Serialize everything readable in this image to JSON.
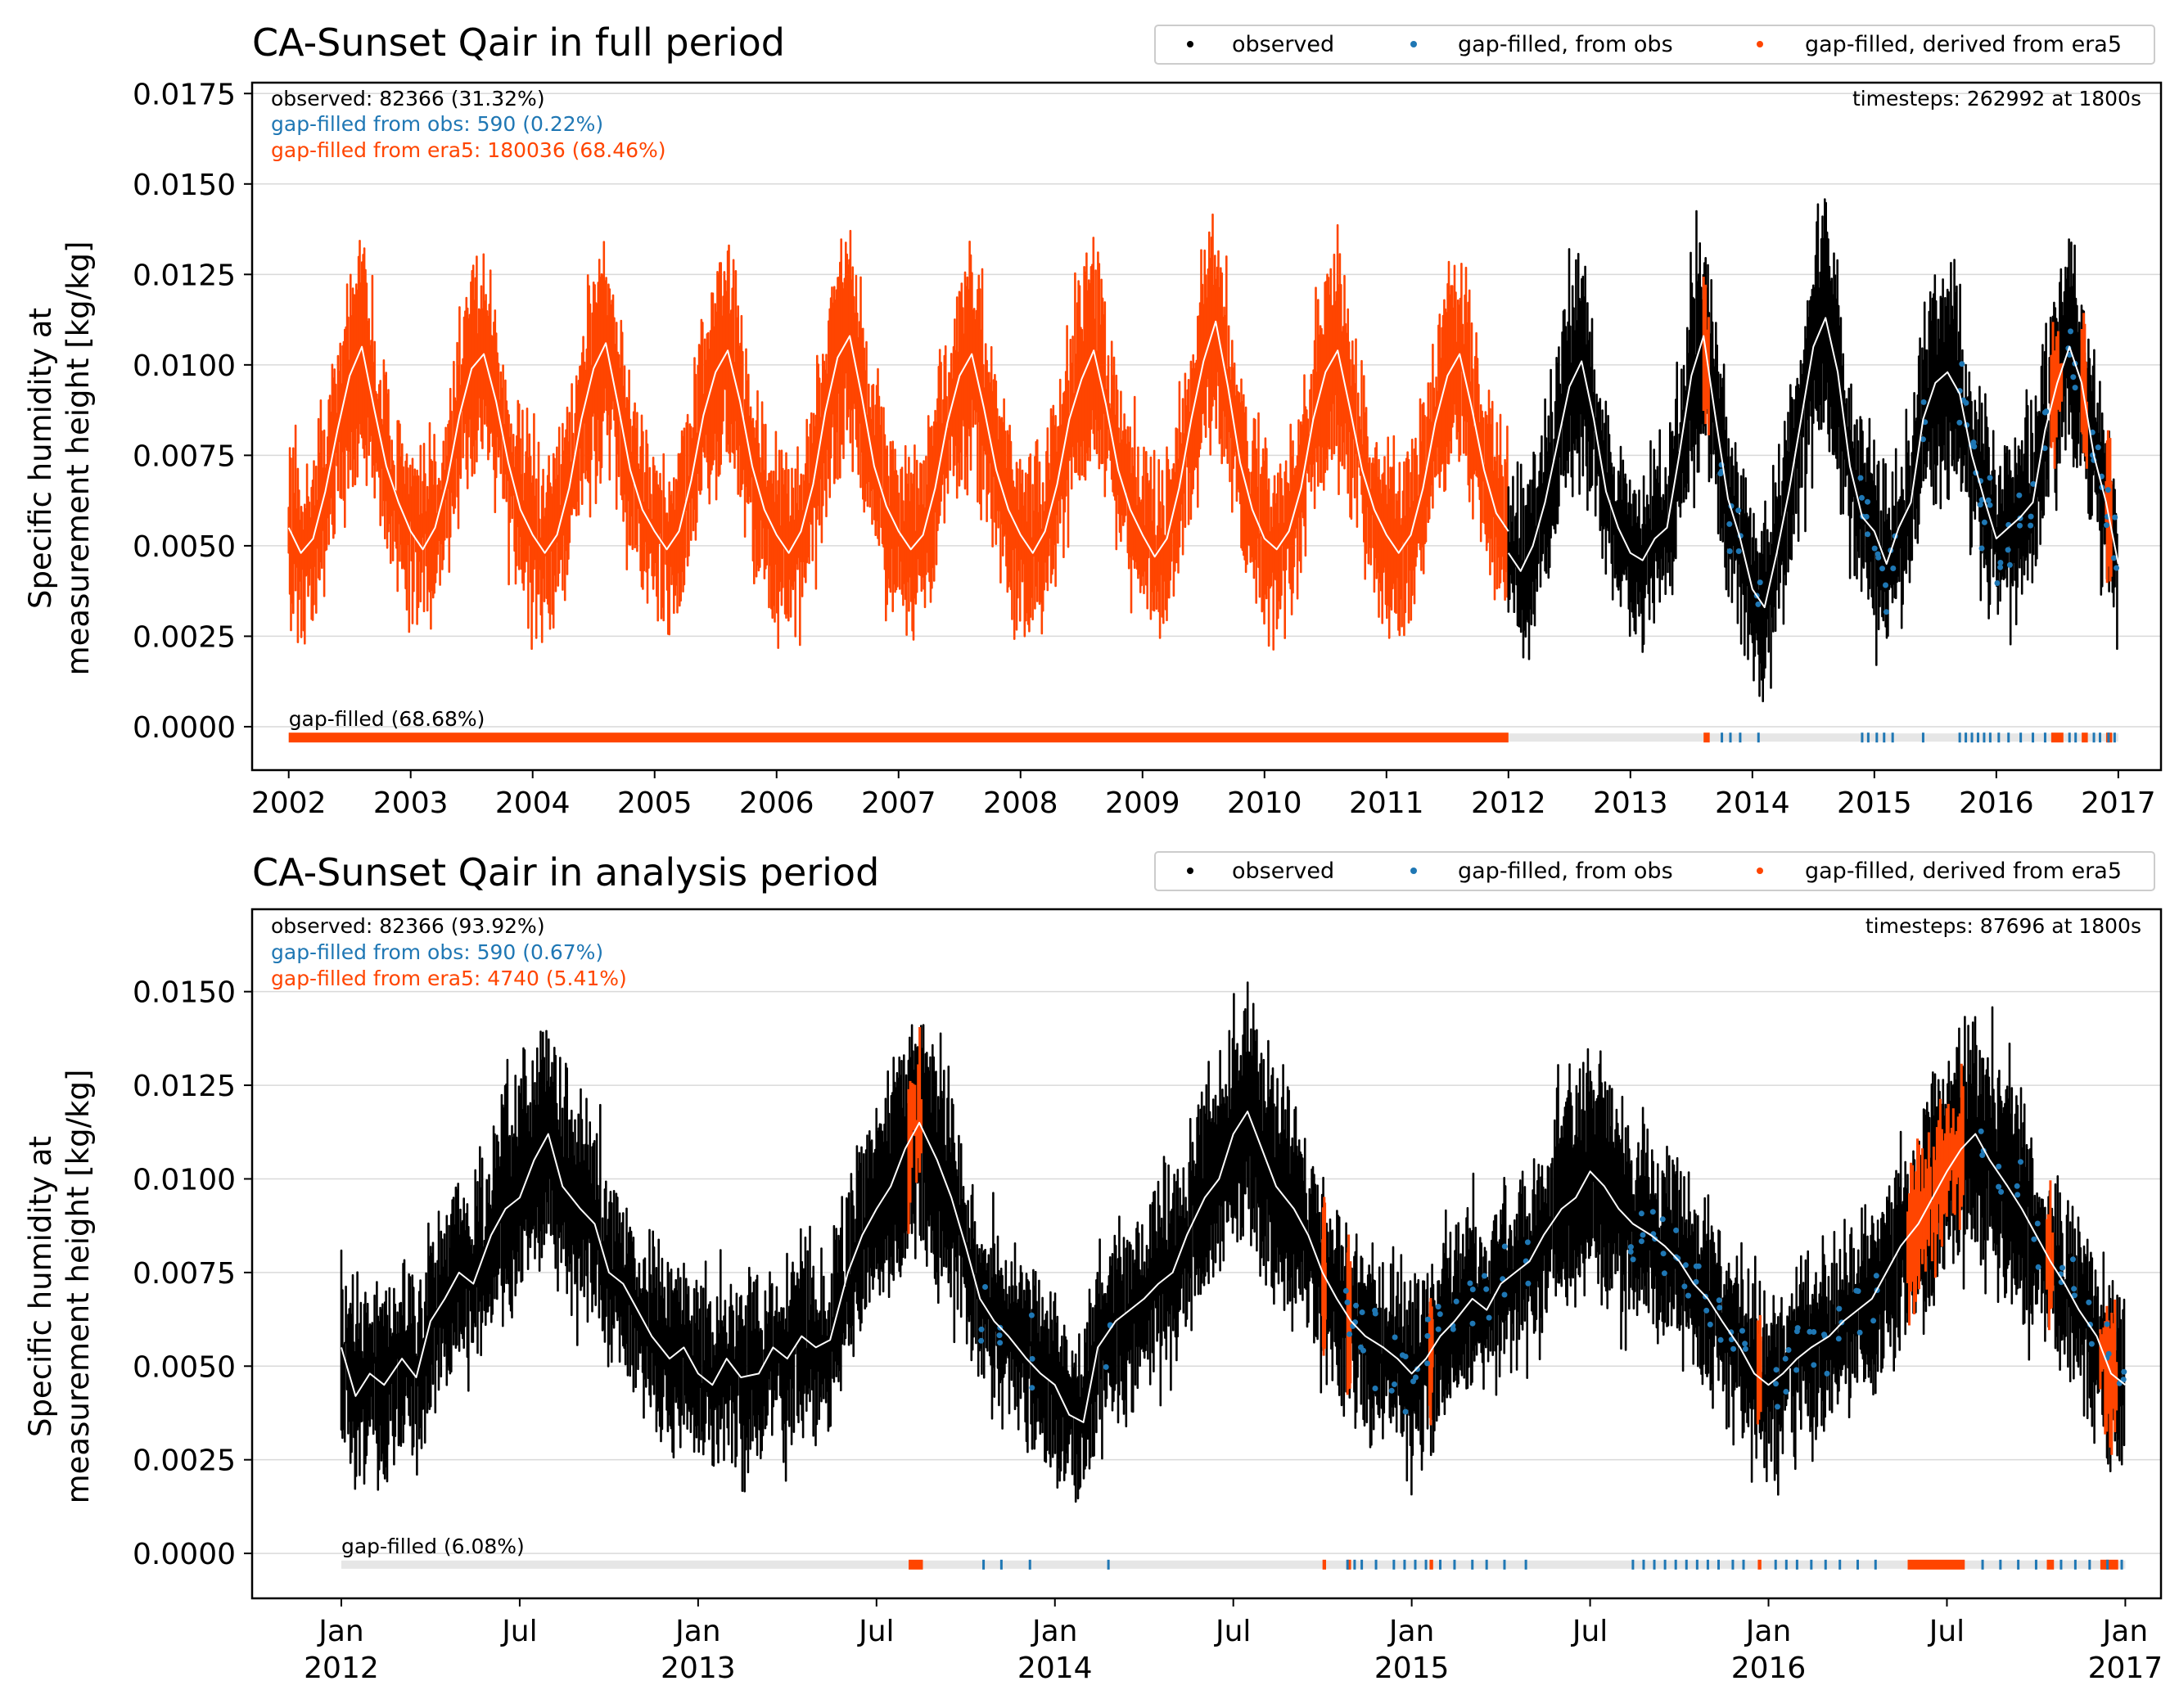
{
  "colors": {
    "observed": "#000000",
    "gapfill_obs": "#1f77b4",
    "gapfill_era5": "#ff4500",
    "mean_line": "#ffffff",
    "bar_bg": "#e6e6e6"
  },
  "chart_data": [
    {
      "type": "scatter",
      "title": "CA-Sunset Qair in full period",
      "ylabel": "Specific humidity at\nmeasurement height [kg/kg]",
      "xlabel": "",
      "x_unit": "year",
      "xlim": [
        2001.7,
        2017.35
      ],
      "ylim": [
        -0.0012,
        0.0178
      ],
      "yticks": [
        0.0,
        0.0025,
        0.005,
        0.0075,
        0.01,
        0.0125,
        0.015,
        0.0175
      ],
      "ytick_labels": [
        "0.0000",
        "0.0025",
        "0.0050",
        "0.0075",
        "0.0100",
        "0.0125",
        "0.0150",
        "0.0175"
      ],
      "xticks": [
        2002,
        2003,
        2004,
        2005,
        2006,
        2007,
        2008,
        2009,
        2010,
        2011,
        2012,
        2013,
        2014,
        2015,
        2016,
        2017
      ],
      "xtick_labels": [
        "2002",
        "2003",
        "2004",
        "2005",
        "2006",
        "2007",
        "2008",
        "2009",
        "2010",
        "2011",
        "2012",
        "2013",
        "2014",
        "2015",
        "2016",
        "2017"
      ],
      "grid": "horizontal",
      "legend": {
        "placement": "top-right",
        "entries": [
          "observed",
          "gap-filled, from obs",
          "gap-filled, derived from era5"
        ]
      },
      "stats": {
        "observed": "observed: 82366 (31.32%)",
        "gapfill_obs": "gap-filled from obs: 590 (0.22%)",
        "gapfill_era5": "gap-filled from era5: 180036 (68.46%)",
        "timesteps": "timesteps: 262992 at 1800s"
      },
      "gapbar": {
        "label": "gap-filled (68.68%)",
        "y": -0.0003,
        "era5_segments": [
          [
            2002.0,
            2012.0
          ],
          [
            2013.6,
            2013.65
          ],
          [
            2016.45,
            2016.55
          ],
          [
            2016.7,
            2016.75
          ],
          [
            2016.9,
            2016.95
          ]
        ],
        "obs_ticks": [
          2013.75,
          2013.82,
          2013.9,
          2014.05,
          2014.9,
          2014.95,
          2015.02,
          2015.08,
          2015.15,
          2015.4,
          2015.7,
          2015.75,
          2015.8,
          2015.85,
          2015.9,
          2015.95,
          2016.02,
          2016.1,
          2016.2,
          2016.3,
          2016.4,
          2016.6,
          2016.65,
          2016.8,
          2016.85,
          2016.92,
          2016.97
        ]
      },
      "series": [
        {
          "name": "gap-filled, derived from era5",
          "mean": {
            "x": [
              2002.0,
              2002.1,
              2002.2,
              2002.3,
              2002.4,
              2002.5,
              2002.6,
              2002.7,
              2002.8,
              2002.9,
              2003.0,
              2003.1,
              2003.2,
              2003.3,
              2003.4,
              2003.5,
              2003.6,
              2003.7,
              2003.8,
              2003.9,
              2004.0,
              2004.1,
              2004.2,
              2004.3,
              2004.4,
              2004.5,
              2004.6,
              2004.7,
              2004.8,
              2004.9,
              2005.0,
              2005.1,
              2005.2,
              2005.3,
              2005.4,
              2005.5,
              2005.6,
              2005.7,
              2005.8,
              2005.9,
              2006.0,
              2006.1,
              2006.2,
              2006.3,
              2006.4,
              2006.5,
              2006.6,
              2006.7,
              2006.8,
              2006.9,
              2007.0,
              2007.1,
              2007.2,
              2007.3,
              2007.4,
              2007.5,
              2007.6,
              2007.7,
              2007.8,
              2007.9,
              2008.0,
              2008.1,
              2008.2,
              2008.3,
              2008.4,
              2008.5,
              2008.6,
              2008.7,
              2008.8,
              2008.9,
              2009.0,
              2009.1,
              2009.2,
              2009.3,
              2009.4,
              2009.5,
              2009.6,
              2009.7,
              2009.8,
              2009.9,
              2010.0,
              2010.1,
              2010.2,
              2010.3,
              2010.4,
              2010.5,
              2010.6,
              2010.7,
              2010.8,
              2010.9,
              2011.0,
              2011.1,
              2011.2,
              2011.3,
              2011.4,
              2011.5,
              2011.6,
              2011.7,
              2011.8,
              2011.9,
              2012.0
            ],
            "y": [
              0.0055,
              0.0048,
              0.0052,
              0.0065,
              0.0082,
              0.0097,
              0.0105,
              0.0088,
              0.0072,
              0.0062,
              0.0054,
              0.0049,
              0.0055,
              0.0068,
              0.0086,
              0.0099,
              0.0103,
              0.009,
              0.0073,
              0.006,
              0.0053,
              0.0048,
              0.0053,
              0.0066,
              0.0085,
              0.0099,
              0.0106,
              0.0089,
              0.0071,
              0.006,
              0.0054,
              0.0049,
              0.0054,
              0.0068,
              0.0086,
              0.0098,
              0.0104,
              0.009,
              0.0072,
              0.006,
              0.0053,
              0.0048,
              0.0054,
              0.0067,
              0.0087,
              0.0102,
              0.0108,
              0.0091,
              0.0072,
              0.0061,
              0.0054,
              0.0049,
              0.0053,
              0.0066,
              0.0084,
              0.0097,
              0.0103,
              0.0088,
              0.0071,
              0.006,
              0.0053,
              0.0048,
              0.0054,
              0.0067,
              0.0085,
              0.0096,
              0.0104,
              0.0089,
              0.0071,
              0.006,
              0.0053,
              0.0047,
              0.0052,
              0.0066,
              0.0085,
              0.0101,
              0.0112,
              0.0094,
              0.0073,
              0.006,
              0.0052,
              0.0049,
              0.0054,
              0.0066,
              0.0085,
              0.0098,
              0.0104,
              0.0088,
              0.0071,
              0.006,
              0.0053,
              0.0048,
              0.0053,
              0.0066,
              0.0084,
              0.0097,
              0.0103,
              0.0088,
              0.0071,
              0.0059,
              0.0054
            ]
          }
        },
        {
          "name": "observed",
          "mean": {
            "x": [
              2012.0,
              2012.1,
              2012.2,
              2012.3,
              2012.4,
              2012.5,
              2012.6,
              2012.7,
              2012.8,
              2012.9,
              2013.0,
              2013.1,
              2013.2,
              2013.3,
              2013.4,
              2013.5,
              2013.6,
              2013.7,
              2013.8,
              2013.9,
              2014.0,
              2014.1,
              2014.2,
              2014.3,
              2014.4,
              2014.5,
              2014.6,
              2014.7,
              2014.8,
              2014.9,
              2015.0,
              2015.1,
              2015.2,
              2015.3,
              2015.4,
              2015.5,
              2015.6,
              2015.7,
              2015.8,
              2015.9,
              2016.0,
              2016.1,
              2016.2,
              2016.3,
              2016.4,
              2016.5,
              2016.6,
              2016.7,
              2016.8,
              2016.9,
              2017.0
            ],
            "y": [
              0.0048,
              0.0043,
              0.005,
              0.0062,
              0.0078,
              0.0094,
              0.0101,
              0.0085,
              0.0065,
              0.0055,
              0.0048,
              0.0046,
              0.0052,
              0.0055,
              0.0075,
              0.0097,
              0.0108,
              0.0085,
              0.0063,
              0.0052,
              0.0038,
              0.0033,
              0.0048,
              0.0065,
              0.0085,
              0.0105,
              0.0113,
              0.0098,
              0.0072,
              0.0058,
              0.0054,
              0.0045,
              0.0055,
              0.0062,
              0.0085,
              0.0095,
              0.0098,
              0.0092,
              0.0075,
              0.0063,
              0.0052,
              0.0055,
              0.0058,
              0.0062,
              0.0082,
              0.0095,
              0.0105,
              0.0095,
              0.0075,
              0.0062,
              0.0045
            ]
          }
        },
        {
          "name": "gap-filled, from obs"
        }
      ]
    },
    {
      "type": "scatter",
      "title": "CA-Sunset Qair in analysis period",
      "ylabel": "Specific humidity at\nmeasurement height [kg/kg]",
      "xlabel": "",
      "x_unit": "year (decimal)",
      "xlim": [
        2011.75,
        2017.1
      ],
      "ylim": [
        -0.0012,
        0.0172
      ],
      "yticks": [
        0.0,
        0.0025,
        0.005,
        0.0075,
        0.01,
        0.0125,
        0.015
      ],
      "ytick_labels": [
        "0.0000",
        "0.0025",
        "0.0050",
        "0.0075",
        "0.0100",
        "0.0125",
        "0.0150"
      ],
      "xticks": [
        2012.0,
        2012.5,
        2013.0,
        2013.5,
        2014.0,
        2014.5,
        2015.0,
        2015.5,
        2016.0,
        2016.5,
        2017.0
      ],
      "xtick_labels": [
        [
          "Jan",
          "2012"
        ],
        [
          "Jul",
          ""
        ],
        [
          "Jan",
          "2013"
        ],
        [
          "Jul",
          ""
        ],
        [
          "Jan",
          "2014"
        ],
        [
          "Jul",
          ""
        ],
        [
          "Jan",
          "2015"
        ],
        [
          "Jul",
          ""
        ],
        [
          "Jan",
          "2016"
        ],
        [
          "Jul",
          ""
        ],
        [
          "Jan",
          "2017"
        ]
      ],
      "grid": "horizontal",
      "legend": {
        "placement": "top-right",
        "entries": [
          "observed",
          "gap-filled, from obs",
          "gap-filled, derived from era5"
        ]
      },
      "stats": {
        "observed": "observed: 82366 (93.92%)",
        "gapfill_obs": "gap-filled from obs: 590 (0.67%)",
        "gapfill_era5": "gap-filled from era5: 4740 (5.41%)",
        "timesteps": "timesteps: 87696 at 1800s"
      },
      "gapbar": {
        "label": "gap-filled (6.08%)",
        "y": -0.0003,
        "era5_segments": [
          [
            2013.59,
            2013.63
          ],
          [
            2014.75,
            2014.76
          ],
          [
            2014.82,
            2014.83
          ],
          [
            2015.05,
            2015.06
          ],
          [
            2015.97,
            2015.98
          ],
          [
            2016.39,
            2016.55
          ],
          [
            2016.78,
            2016.8
          ],
          [
            2016.93,
            2016.98
          ]
        ],
        "obs_ticks": [
          2013.8,
          2013.85,
          2013.93,
          2014.15,
          2014.82,
          2014.84,
          2014.86,
          2014.9,
          2014.95,
          2014.98,
          2015.01,
          2015.04,
          2015.08,
          2015.12,
          2015.17,
          2015.21,
          2015.26,
          2015.32,
          2015.62,
          2015.65,
          2015.68,
          2015.71,
          2015.74,
          2015.77,
          2015.8,
          2015.83,
          2015.86,
          2015.9,
          2015.93,
          2016.02,
          2016.05,
          2016.08,
          2016.12,
          2016.16,
          2016.2,
          2016.25,
          2016.3,
          2016.6,
          2016.65,
          2016.7,
          2016.75,
          2016.82,
          2016.86,
          2016.9,
          2016.95,
          2016.99
        ]
      },
      "series": [
        {
          "name": "observed",
          "mean": {
            "x": [
              2012.0,
              2012.04,
              2012.08,
              2012.12,
              2012.17,
              2012.21,
              2012.25,
              2012.29,
              2012.33,
              2012.37,
              2012.42,
              2012.46,
              2012.5,
              2012.54,
              2012.58,
              2012.62,
              2012.67,
              2012.71,
              2012.75,
              2012.79,
              2012.83,
              2012.87,
              2012.92,
              2012.96,
              2013.0,
              2013.04,
              2013.08,
              2013.12,
              2013.17,
              2013.21,
              2013.25,
              2013.29,
              2013.33,
              2013.37,
              2013.42,
              2013.46,
              2013.5,
              2013.54,
              2013.58,
              2013.62,
              2013.67,
              2013.71,
              2013.75,
              2013.79,
              2013.83,
              2013.87,
              2013.92,
              2013.96,
              2014.0,
              2014.04,
              2014.08,
              2014.12,
              2014.17,
              2014.21,
              2014.25,
              2014.29,
              2014.33,
              2014.37,
              2014.42,
              2014.46,
              2014.5,
              2014.54,
              2014.58,
              2014.62,
              2014.67,
              2014.71,
              2014.75,
              2014.79,
              2014.83,
              2014.87,
              2014.92,
              2014.96,
              2015.0,
              2015.04,
              2015.08,
              2015.12,
              2015.17,
              2015.21,
              2015.25,
              2015.29,
              2015.33,
              2015.37,
              2015.42,
              2015.46,
              2015.5,
              2015.54,
              2015.58,
              2015.62,
              2015.67,
              2015.71,
              2015.75,
              2015.79,
              2015.83,
              2015.87,
              2015.92,
              2015.96,
              2016.0,
              2016.04,
              2016.08,
              2016.12,
              2016.17,
              2016.21,
              2016.25,
              2016.29,
              2016.33,
              2016.37,
              2016.42,
              2016.46,
              2016.5,
              2016.54,
              2016.58,
              2016.62,
              2016.67,
              2016.71,
              2016.75,
              2016.79,
              2016.83,
              2016.87,
              2016.92,
              2016.96,
              2017.0
            ],
            "y": [
              0.0055,
              0.0042,
              0.0048,
              0.0045,
              0.0052,
              0.0047,
              0.0062,
              0.0068,
              0.0075,
              0.0072,
              0.0085,
              0.0092,
              0.0095,
              0.0105,
              0.0112,
              0.0098,
              0.0092,
              0.0088,
              0.0075,
              0.0072,
              0.0065,
              0.0058,
              0.0052,
              0.0055,
              0.0048,
              0.0045,
              0.0052,
              0.0047,
              0.0048,
              0.0055,
              0.0052,
              0.0058,
              0.0055,
              0.0057,
              0.0075,
              0.0085,
              0.0092,
              0.0098,
              0.0108,
              0.0115,
              0.0105,
              0.0095,
              0.0082,
              0.0068,
              0.0062,
              0.0058,
              0.0052,
              0.0048,
              0.0045,
              0.0037,
              0.0035,
              0.0055,
              0.0062,
              0.0065,
              0.0068,
              0.0072,
              0.0075,
              0.0085,
              0.0095,
              0.01,
              0.0112,
              0.0118,
              0.0108,
              0.0098,
              0.0092,
              0.0085,
              0.0075,
              0.0068,
              0.0062,
              0.0058,
              0.0055,
              0.0052,
              0.0048,
              0.0052,
              0.0058,
              0.0062,
              0.0068,
              0.0065,
              0.0072,
              0.0075,
              0.0078,
              0.0085,
              0.0092,
              0.0095,
              0.0102,
              0.0098,
              0.0092,
              0.0088,
              0.0085,
              0.0082,
              0.0078,
              0.0072,
              0.0068,
              0.0062,
              0.0055,
              0.0048,
              0.0045,
              0.0048,
              0.0052,
              0.0055,
              0.0058,
              0.0062,
              0.0065,
              0.0068,
              0.0075,
              0.0082,
              0.0088,
              0.0095,
              0.0102,
              0.0108,
              0.0112,
              0.0105,
              0.0098,
              0.0092,
              0.0085,
              0.0078,
              0.0072,
              0.0065,
              0.0058,
              0.0048,
              0.0045
            ]
          }
        },
        {
          "name": "gap-filled, from obs"
        },
        {
          "name": "gap-filled, derived from era5"
        }
      ]
    }
  ]
}
